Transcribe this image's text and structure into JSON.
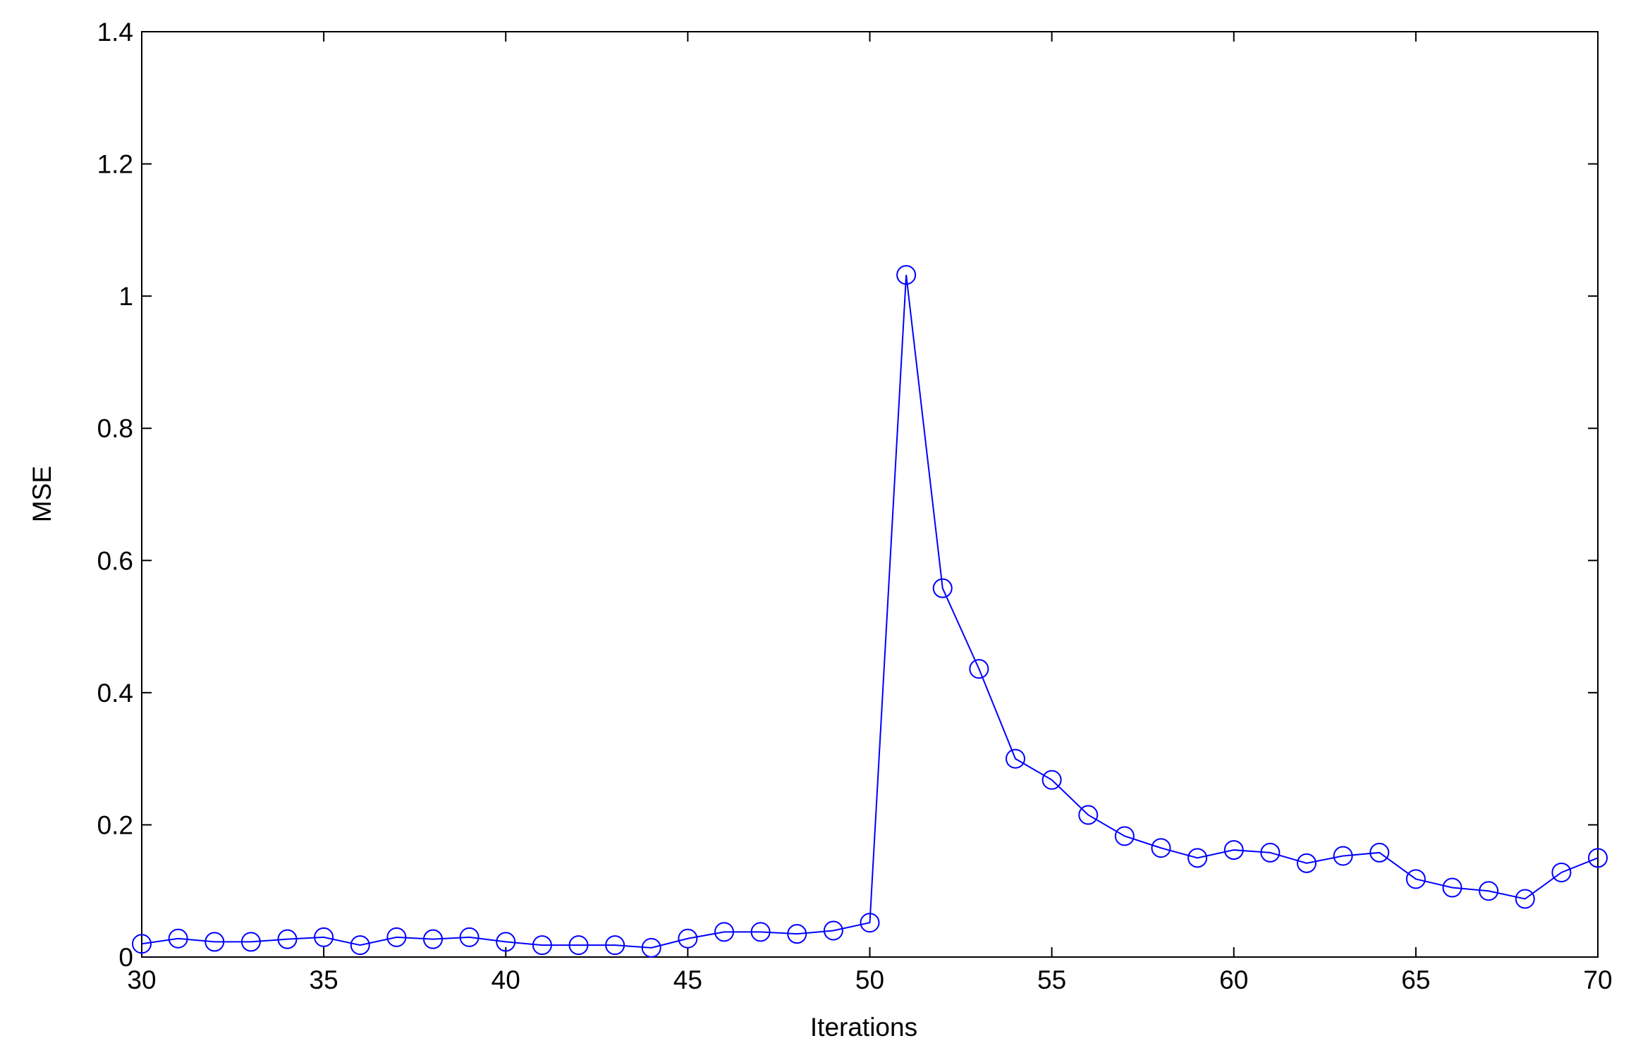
{
  "chart_data": {
    "type": "line",
    "xlabel": "Iterations",
    "ylabel": "MSE",
    "x": [
      30,
      31,
      32,
      33,
      34,
      35,
      36,
      37,
      38,
      39,
      40,
      41,
      42,
      43,
      44,
      45,
      46,
      47,
      48,
      49,
      50,
      51,
      52,
      53,
      54,
      55,
      56,
      57,
      58,
      59,
      60,
      61,
      62,
      63,
      64,
      65,
      66,
      67,
      68,
      69,
      70
    ],
    "values": [
      0.02,
      0.028,
      0.023,
      0.023,
      0.027,
      0.03,
      0.018,
      0.03,
      0.027,
      0.03,
      0.023,
      0.018,
      0.018,
      0.018,
      0.014,
      0.028,
      0.038,
      0.038,
      0.035,
      0.04,
      0.052,
      1.032,
      0.558,
      0.436,
      0.3,
      0.268,
      0.215,
      0.183,
      0.165,
      0.15,
      0.162,
      0.158,
      0.142,
      0.153,
      0.158,
      0.118,
      0.105,
      0.1,
      0.088,
      0.128,
      0.15
    ],
    "color": "#0000ff",
    "marker": "circle",
    "xlim": [
      30,
      70
    ],
    "xticks": [
      30,
      35,
      40,
      45,
      50,
      55,
      60,
      65,
      70
    ],
    "ylim": [
      0,
      1.4
    ],
    "yticks": [
      0,
      0.2,
      0.4,
      0.6,
      0.8,
      1,
      1.2,
      1.4
    ],
    "grid": false
  }
}
